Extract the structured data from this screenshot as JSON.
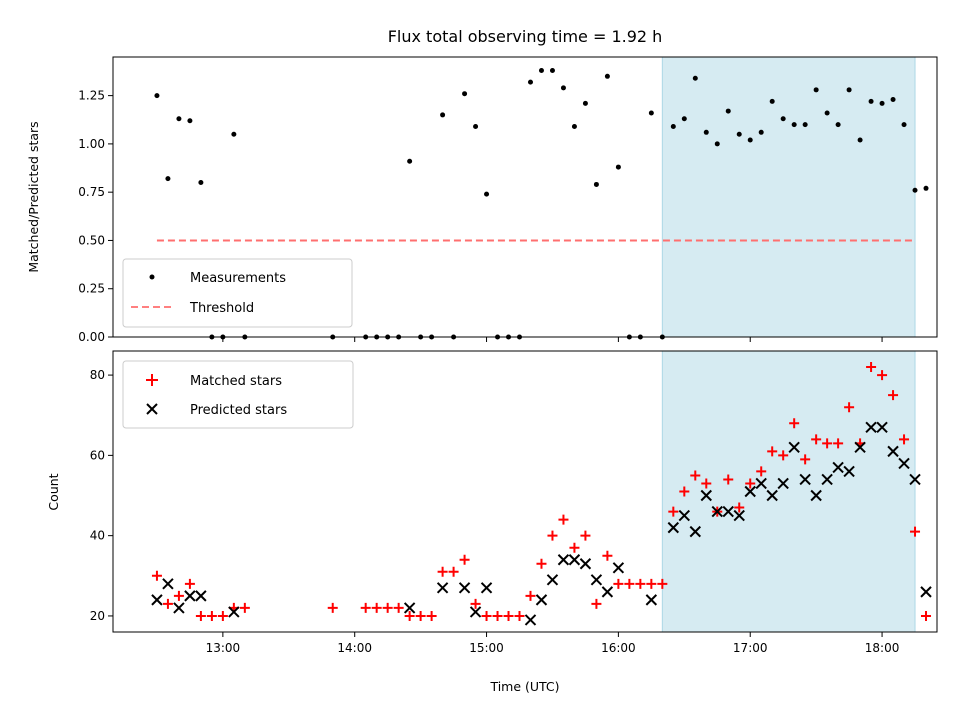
{
  "chart_data": [
    {
      "type": "scatter",
      "title": "Flux total observing time = 1.92 h",
      "ylabel": "Matched/Predicted stars",
      "xlabel": "",
      "ylim": [
        0,
        1.45
      ],
      "yticks": [
        "0.00",
        "0.25",
        "0.50",
        "0.75",
        "1.00",
        "1.25"
      ],
      "legend_position": "lower-left",
      "highlight_span": {
        "start": "16:20",
        "end": "18:15",
        "color": "#add8e6"
      },
      "threshold": {
        "name": "Threshold",
        "value": 0.5,
        "start": "12:30",
        "end": "18:15",
        "color": "#ff6f6f"
      },
      "series": [
        {
          "name": "Measurements",
          "color": "#000000",
          "points": [
            [
              "12:30",
              1.25
            ],
            [
              "12:35",
              0.82
            ],
            [
              "12:40",
              1.13
            ],
            [
              "12:45",
              1.12
            ],
            [
              "12:50",
              0.8
            ],
            [
              "12:55",
              0.0
            ],
            [
              "13:00",
              0.0
            ],
            [
              "13:05",
              1.05
            ],
            [
              "13:10",
              0.0
            ],
            [
              "13:50",
              0.0
            ],
            [
              "14:05",
              0.0
            ],
            [
              "14:10",
              0.0
            ],
            [
              "14:15",
              0.0
            ],
            [
              "14:20",
              0.0
            ],
            [
              "14:25",
              0.91
            ],
            [
              "14:30",
              0.0
            ],
            [
              "14:35",
              0.0
            ],
            [
              "14:40",
              1.15
            ],
            [
              "14:45",
              0.0
            ],
            [
              "14:50",
              1.26
            ],
            [
              "14:55",
              1.09
            ],
            [
              "15:00",
              0.74
            ],
            [
              "15:05",
              0.0
            ],
            [
              "15:10",
              0.0
            ],
            [
              "15:15",
              0.0
            ],
            [
              "15:20",
              1.32
            ],
            [
              "15:25",
              1.38
            ],
            [
              "15:30",
              1.38
            ],
            [
              "15:35",
              1.29
            ],
            [
              "15:40",
              1.09
            ],
            [
              "15:45",
              1.21
            ],
            [
              "15:50",
              0.79
            ],
            [
              "15:55",
              1.35
            ],
            [
              "16:00",
              0.88
            ],
            [
              "16:05",
              0.0
            ],
            [
              "16:10",
              0.0
            ],
            [
              "16:15",
              1.16
            ],
            [
              "16:20",
              0.0
            ],
            [
              "16:25",
              1.09
            ],
            [
              "16:30",
              1.13
            ],
            [
              "16:35",
              1.34
            ],
            [
              "16:40",
              1.06
            ],
            [
              "16:45",
              1.0
            ],
            [
              "16:50",
              1.17
            ],
            [
              "16:55",
              1.05
            ],
            [
              "17:00",
              1.02
            ],
            [
              "17:05",
              1.06
            ],
            [
              "17:10",
              1.22
            ],
            [
              "17:15",
              1.13
            ],
            [
              "17:20",
              1.1
            ],
            [
              "17:25",
              1.1
            ],
            [
              "17:30",
              1.28
            ],
            [
              "17:35",
              1.16
            ],
            [
              "17:40",
              1.1
            ],
            [
              "17:45",
              1.28
            ],
            [
              "17:50",
              1.02
            ],
            [
              "17:55",
              1.22
            ],
            [
              "18:00",
              1.21
            ],
            [
              "18:05",
              1.23
            ],
            [
              "18:10",
              1.1
            ],
            [
              "18:15",
              0.76
            ],
            [
              "18:20",
              0.77
            ]
          ]
        }
      ]
    },
    {
      "type": "scatter",
      "title": "",
      "xlabel": "Time (UTC)",
      "ylabel": "Count",
      "ylim": [
        16,
        86
      ],
      "yticks": [
        "20",
        "40",
        "60",
        "80"
      ],
      "xticks": [
        "13:00",
        "14:00",
        "15:00",
        "16:00",
        "17:00",
        "18:00"
      ],
      "xlim": [
        "12:10",
        "18:25"
      ],
      "legend_position": "upper-left",
      "highlight_span": {
        "start": "16:20",
        "end": "18:15",
        "color": "#add8e6"
      },
      "series": [
        {
          "name": "Matched stars",
          "marker": "plus",
          "color": "#ff0000",
          "points": [
            [
              "12:30",
              30
            ],
            [
              "12:35",
              23
            ],
            [
              "12:40",
              25
            ],
            [
              "12:45",
              28
            ],
            [
              "12:50",
              20
            ],
            [
              "12:55",
              20
            ],
            [
              "13:00",
              20
            ],
            [
              "13:05",
              22
            ],
            [
              "13:10",
              22
            ],
            [
              "13:50",
              22
            ],
            [
              "14:05",
              22
            ],
            [
              "14:10",
              22
            ],
            [
              "14:15",
              22
            ],
            [
              "14:20",
              22
            ],
            [
              "14:25",
              20
            ],
            [
              "14:30",
              20
            ],
            [
              "14:35",
              20
            ],
            [
              "14:40",
              31
            ],
            [
              "14:45",
              31
            ],
            [
              "14:50",
              34
            ],
            [
              "14:55",
              23
            ],
            [
              "15:00",
              20
            ],
            [
              "15:05",
              20
            ],
            [
              "15:10",
              20
            ],
            [
              "15:15",
              20
            ],
            [
              "15:20",
              25
            ],
            [
              "15:25",
              33
            ],
            [
              "15:30",
              40
            ],
            [
              "15:35",
              44
            ],
            [
              "15:40",
              37
            ],
            [
              "15:45",
              40
            ],
            [
              "15:50",
              23
            ],
            [
              "15:55",
              35
            ],
            [
              "16:00",
              28
            ],
            [
              "16:05",
              28
            ],
            [
              "16:10",
              28
            ],
            [
              "16:15",
              28
            ],
            [
              "16:20",
              28
            ],
            [
              "16:25",
              46
            ],
            [
              "16:30",
              51
            ],
            [
              "16:35",
              55
            ],
            [
              "16:40",
              53
            ],
            [
              "16:45",
              46
            ],
            [
              "16:50",
              54
            ],
            [
              "16:55",
              47
            ],
            [
              "17:00",
              53
            ],
            [
              "17:05",
              56
            ],
            [
              "17:10",
              61
            ],
            [
              "17:15",
              60
            ],
            [
              "17:20",
              68
            ],
            [
              "17:25",
              59
            ],
            [
              "17:30",
              64
            ],
            [
              "17:35",
              63
            ],
            [
              "17:40",
              63
            ],
            [
              "17:45",
              72
            ],
            [
              "17:50",
              63
            ],
            [
              "17:55",
              82
            ],
            [
              "18:00",
              80
            ],
            [
              "18:05",
              75
            ],
            [
              "18:10",
              64
            ],
            [
              "18:15",
              41
            ],
            [
              "18:20",
              20
            ]
          ]
        },
        {
          "name": "Predicted stars",
          "marker": "x",
          "color": "#000000",
          "points": [
            [
              "12:30",
              24
            ],
            [
              "12:35",
              28
            ],
            [
              "12:40",
              22
            ],
            [
              "12:45",
              25
            ],
            [
              "12:50",
              25
            ],
            [
              "13:05",
              21
            ],
            [
              "14:25",
              22
            ],
            [
              "14:40",
              27
            ],
            [
              "14:50",
              27
            ],
            [
              "14:55",
              21
            ],
            [
              "15:00",
              27
            ],
            [
              "15:20",
              19
            ],
            [
              "15:25",
              24
            ],
            [
              "15:30",
              29
            ],
            [
              "15:35",
              34
            ],
            [
              "15:40",
              34
            ],
            [
              "15:45",
              33
            ],
            [
              "15:50",
              29
            ],
            [
              "15:55",
              26
            ],
            [
              "16:00",
              32
            ],
            [
              "16:15",
              24
            ],
            [
              "16:25",
              42
            ],
            [
              "16:30",
              45
            ],
            [
              "16:35",
              41
            ],
            [
              "16:40",
              50
            ],
            [
              "16:45",
              46
            ],
            [
              "16:50",
              46
            ],
            [
              "16:55",
              45
            ],
            [
              "17:00",
              51
            ],
            [
              "17:05",
              53
            ],
            [
              "17:10",
              50
            ],
            [
              "17:15",
              53
            ],
            [
              "17:20",
              62
            ],
            [
              "17:25",
              54
            ],
            [
              "17:30",
              50
            ],
            [
              "17:35",
              54
            ],
            [
              "17:40",
              57
            ],
            [
              "17:45",
              56
            ],
            [
              "17:50",
              62
            ],
            [
              "17:55",
              67
            ],
            [
              "18:00",
              67
            ],
            [
              "18:05",
              61
            ],
            [
              "18:10",
              58
            ],
            [
              "18:15",
              54
            ],
            [
              "18:20",
              26
            ]
          ]
        }
      ]
    }
  ]
}
